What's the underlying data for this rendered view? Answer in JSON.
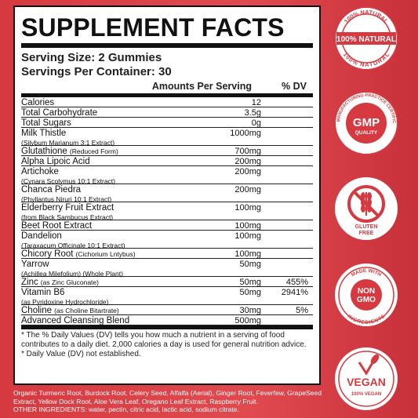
{
  "title": "SUPPLEMENT FACTS",
  "serving_size": "Serving Size: 2 Gummies",
  "servings_per_container": "Servings Per Container: 30",
  "col_amount": "Amounts Per Serving",
  "col_dv": "% DV",
  "rows": [
    {
      "name": "Calories",
      "sub": "",
      "amount": "12",
      "dv": ""
    },
    {
      "name": "Total Carbohydrate",
      "sub": "",
      "amount": "3.5g",
      "dv": ""
    },
    {
      "name": "Total Sugars",
      "sub": "",
      "amount": "0g",
      "dv": ""
    },
    {
      "name": "Milk Thistle",
      "sub": "(Silybum Marianum 3:1 Extract)",
      "amount": "1000mg",
      "dv": ""
    },
    {
      "name": "Glutathione",
      "sub": "(Reduced Form)",
      "amount": "700mg",
      "dv": ""
    },
    {
      "name": "Alpha Lipoic Acid",
      "sub": "",
      "amount": "200mg",
      "dv": ""
    },
    {
      "name": "Artichoke",
      "sub": "(Cynara Scolymus 10:1 Extract)",
      "amount": "200mg",
      "dv": ""
    },
    {
      "name": "Chanca Piedra",
      "sub": "(Phyllantus Niruri 10:1 Extract)",
      "amount": "200mg",
      "dv": ""
    },
    {
      "name": "Elderberry Fruit Extract",
      "sub": "(from Black Sambucus Extract)",
      "amount": "100mg",
      "dv": ""
    },
    {
      "name": "Beet Root Extract",
      "sub": "",
      "amount": "100mg",
      "dv": ""
    },
    {
      "name": "Dandelion",
      "sub": "(Taraxacum Officinale 10:1 Extract)",
      "amount": "100mg",
      "dv": ""
    },
    {
      "name": "Chicory Root",
      "sub": "(Cichorium Lntybus)",
      "amount": "100mg",
      "dv": ""
    },
    {
      "name": "Yarrow",
      "sub": "(Achillea Milefolium) (Whole Plant)",
      "amount": "50mg",
      "dv": ""
    },
    {
      "name": "Zinc",
      "sub": "(as Zinc Gluconate)",
      "amount": "50mg",
      "dv": "455%"
    },
    {
      "name": "Vitamin B6",
      "sub": "(as Pyridoxine Hydrochloride)",
      "amount": "50mg",
      "dv": "2941%"
    },
    {
      "name": "Choline",
      "sub": "(as Choline Bitartrate)",
      "amount": "30mg",
      "dv": "5%"
    },
    {
      "name": "Advanced Cleansing Blend",
      "sub": "",
      "amount": "500mg",
      "dv": ""
    }
  ],
  "footnote1": "* The % Daily Values (DV) tells you how much a nutrient in a serving of food contributes to a daily diet. 2,000 calories a day is used for general nutrition advice.",
  "footnote2": "* Daily Value (DV) not established.",
  "blend_text": "Organic Turmeric Root, Burdock Root, Celery Seed, Alfalfa (Aerial), Ginger Root, Feverfew, GrapeSeed Extract, Yellow Dock Root, Aloe Vera Leaf, Oregano Leaf Extract, Raspberry Fruit.",
  "other_ingredients": "OTHER INGREDIENTS: water, pectin, citric acid, lactic acid, sodium citrate.",
  "badges": {
    "natural_top": "100% NATURAL",
    "natural_main": "100% NATURAL",
    "natural_bottom": "100% NATURAL",
    "gmp_ring": "GOOD MANUFACTURING PRACTICE CERTIFICATION",
    "gmp_main": "GMP",
    "gmp_sub": "QUALITY",
    "gluten_line1": "GLUTEN",
    "gluten_line2": "FREE",
    "nongmo_top": "MADE WITH",
    "nongmo_main1": "NON",
    "nongmo_main2": "GMO",
    "nongmo_bottom": "INGREDIENTS",
    "vegan_main": "VEGAN",
    "vegan_sub": "100% VEGAN"
  },
  "colors": {
    "red": "#d63a40",
    "white": "#ffffff",
    "black": "#111111"
  }
}
